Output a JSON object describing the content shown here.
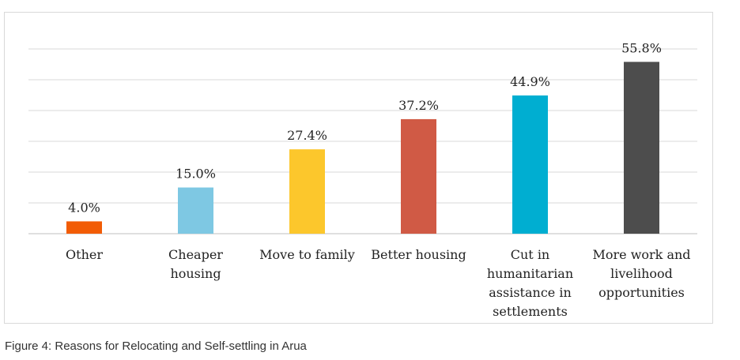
{
  "chart_data": {
    "type": "bar",
    "categories": [
      [
        "Other"
      ],
      [
        "Cheaper",
        "housing"
      ],
      [
        "Move to family"
      ],
      [
        "Better housing"
      ],
      [
        "Cut in",
        "humanitarian",
        "assistance in",
        "settlements"
      ],
      [
        "More work and",
        "livelihood",
        "opportunities"
      ]
    ],
    "values": [
      4.0,
      15.0,
      27.4,
      37.2,
      44.9,
      55.8
    ],
    "data_labels": [
      "4.0%",
      "15.0%",
      "27.4%",
      "37.2%",
      "44.9%",
      "55.8%"
    ],
    "colors": [
      "#f25c05",
      "#7ec8e3",
      "#fcc72c",
      "#d05a45",
      "#00aed1",
      "#4d4d4d"
    ],
    "ylim": [
      0,
      60
    ],
    "grid": true,
    "legend": "none"
  },
  "caption": "Figure 4: Reasons for Relocating and Self-settling in Arua"
}
